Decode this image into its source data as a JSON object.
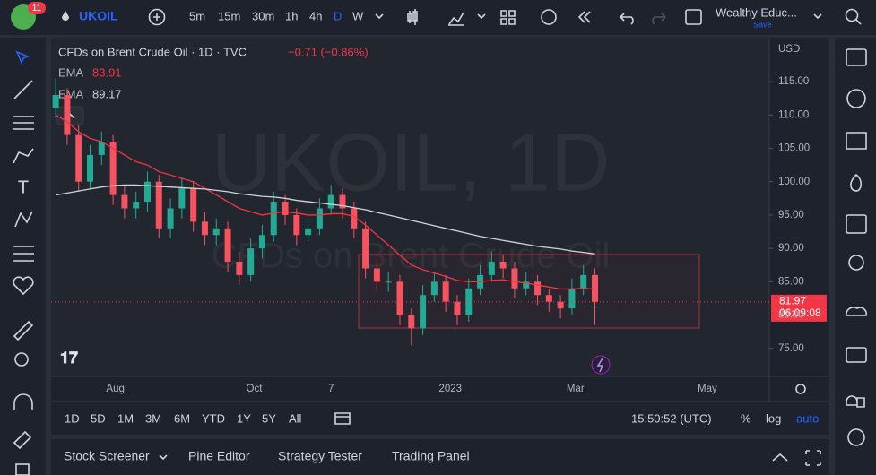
{
  "header": {
    "badge": "11",
    "symbol": "UKOIL",
    "intervals": [
      "5m",
      "15m",
      "30m",
      "1h",
      "4h",
      "D",
      "W"
    ],
    "layout_name": "Wealthy Educ...",
    "save": "Save"
  },
  "legend": {
    "title": "CFDs on Brent Crude Oil · 1D · TVC",
    "change": "−0.71 (−0.86%)",
    "ema_label": "EMA"
  },
  "watermark": {
    "symbol": "UKOIL, 1D",
    "description": "CFDs on Brent Crude Oil"
  },
  "price_axis": {
    "currency": "USD",
    "countdown": "06:09:08"
  },
  "chart_data": {
    "type": "candlestick",
    "categories": [
      null,
      null,
      null,
      null,
      null,
      null,
      null,
      null,
      null,
      null,
      null,
      null,
      null,
      null,
      null,
      null,
      null,
      null,
      null,
      null,
      null,
      null,
      null,
      null,
      null,
      null,
      null,
      null,
      null,
      null,
      null,
      null,
      null,
      null,
      null,
      null,
      null,
      null,
      null,
      null,
      null,
      null,
      null,
      null,
      null,
      null,
      null,
      null
    ],
    "open": [
      111,
      113,
      107,
      100,
      104,
      106,
      98,
      96,
      97,
      100,
      93,
      96,
      99,
      94,
      92,
      93,
      88,
      86,
      90,
      92,
      97,
      95,
      92,
      93,
      96,
      98,
      96,
      93,
      87,
      85,
      85,
      80,
      78,
      83,
      85,
      82,
      80,
      84,
      86,
      88,
      87,
      84,
      85,
      83,
      82,
      81,
      84,
      86
    ],
    "high": [
      115.5,
      114,
      108.5,
      105.5,
      107.5,
      107,
      99.5,
      98.5,
      101.5,
      101,
      97.5,
      100.5,
      100,
      95.5,
      94.5,
      94,
      89.5,
      91.5,
      93.5,
      98.5,
      98,
      96,
      94.5,
      97.5,
      99.5,
      99,
      97,
      94,
      88.5,
      86.5,
      86,
      81,
      84.5,
      86.5,
      86,
      83,
      85.5,
      87.5,
      89.5,
      89,
      88,
      86.5,
      86,
      84,
      83,
      85.5,
      87.5,
      87
    ],
    "low": [
      109.5,
      105.5,
      98.5,
      99,
      102.5,
      96.5,
      94.5,
      94.5,
      95.5,
      91.5,
      91.5,
      94.5,
      92.5,
      90.5,
      90.5,
      86.5,
      84.5,
      85,
      88.5,
      91,
      93.5,
      90.5,
      91,
      92,
      95,
      94.5,
      91.5,
      85.5,
      83.5,
      83.5,
      78.5,
      75.5,
      77,
      82,
      80.5,
      78.5,
      79,
      83,
      85,
      85.5,
      82.5,
      83,
      81.5,
      80.5,
      79.5,
      80,
      83,
      78.5
    ],
    "close": [
      113,
      107,
      100,
      104,
      106,
      98,
      96,
      97,
      100,
      93,
      96,
      99,
      94,
      92,
      93,
      88,
      86,
      90,
      92,
      97,
      95,
      92,
      93,
      96,
      98,
      96,
      93,
      87,
      85,
      85,
      80,
      78,
      83,
      85,
      82,
      80,
      84,
      86,
      88,
      87,
      84,
      85,
      83,
      82,
      81,
      84,
      86,
      81.97
    ],
    "up_color": "#22ab94",
    "down_color": "#f7525f",
    "series": [
      {
        "name": "EMA",
        "color": "#f23645",
        "values": [
          110,
          109,
          107.5,
          106.5,
          106,
          105,
          104,
          103,
          102.5,
          101.5,
          101,
          100.5,
          100,
          99,
          98,
          97,
          96,
          95.5,
          95,
          95.3,
          95.5,
          95.3,
          95,
          95,
          95.2,
          95.2,
          94.8,
          93.5,
          92,
          90.5,
          89,
          87.5,
          86.8,
          86.3,
          85.8,
          85.2,
          85,
          85,
          85.2,
          85.3,
          85,
          84.8,
          84.5,
          84.2,
          83.9,
          83.9,
          84,
          83.91
        ]
      },
      {
        "name": "EMA",
        "color": "#d1d4dc",
        "values": [
          98,
          98.3,
          98.6,
          98.9,
          99.2,
          99.4,
          99.5,
          99.5,
          99.4,
          99.3,
          99.2,
          99.1,
          99,
          98.9,
          98.7,
          98.5,
          98.2,
          98,
          97.8,
          97.7,
          97.5,
          97.2,
          97,
          96.8,
          96.6,
          96.4,
          96.1,
          95.8,
          95.4,
          95,
          94.6,
          94.2,
          93.8,
          93.4,
          93,
          92.6,
          92.2,
          91.8,
          91.5,
          91.2,
          90.9,
          90.6,
          90.3,
          90.1,
          89.9,
          89.6,
          89.4,
          89.17
        ]
      }
    ],
    "xlim": [
      -0.4,
      62.2
    ],
    "xticks": [
      {
        "value": 5.2,
        "label": "Aug"
      },
      {
        "value": 17.3,
        "label": "Oct"
      },
      {
        "value": 24,
        "label": "7"
      },
      {
        "value": 34.4,
        "label": "2023"
      },
      {
        "value": 45.3,
        "label": "Mar"
      },
      {
        "value": 56.8,
        "label": "May"
      }
    ],
    "ylim": [
      70.8,
      121.6
    ],
    "yticks": [
      {
        "value": 75,
        "label": "75.00"
      },
      {
        "value": 80,
        "label": "80.00"
      },
      {
        "value": 85,
        "label": "85.00"
      },
      {
        "value": 90,
        "label": "90.00"
      },
      {
        "value": 95,
        "label": "95.00"
      },
      {
        "value": 100,
        "label": "100.00"
      },
      {
        "value": 105,
        "label": "105.00"
      },
      {
        "value": 110,
        "label": "110.00"
      },
      {
        "value": 115,
        "label": "115.00"
      }
    ],
    "grid": false
  },
  "footer": {
    "ranges": [
      "1D",
      "5D",
      "1M",
      "3M",
      "6M",
      "YTD",
      "1Y",
      "5Y",
      "All"
    ],
    "clock": "15:50:52 (UTC)",
    "percent": "%",
    "log": "log",
    "auto": "auto"
  },
  "panel_tabs": [
    "Stock Screener",
    "Pine Editor",
    "Strategy Tester",
    "Trading Panel"
  ]
}
